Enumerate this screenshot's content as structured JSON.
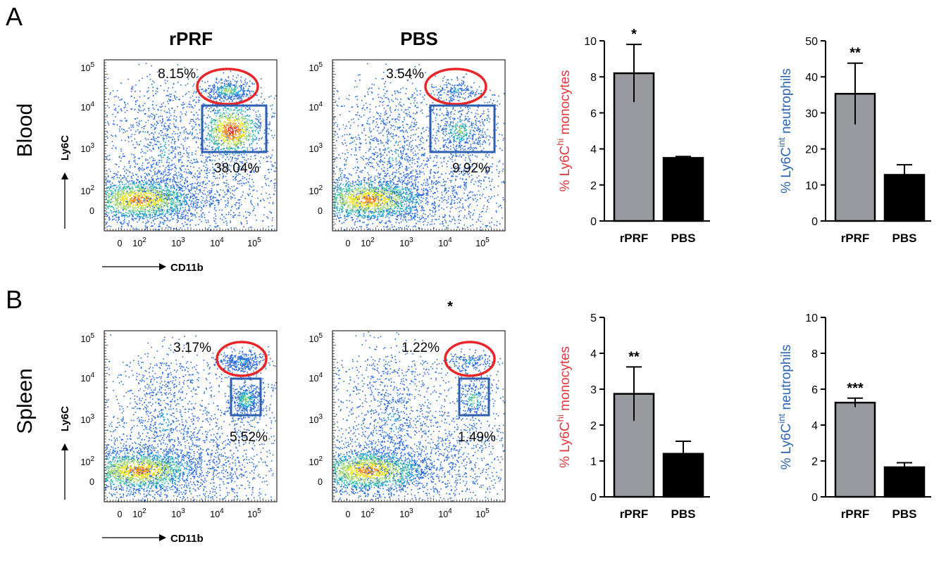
{
  "panels": [
    {
      "letter": "A",
      "tissue": "Blood",
      "flow": [
        {
          "title": "rPRF",
          "hi_pct": "8.15%",
          "int_pct": "38.04%"
        },
        {
          "title": "PBS",
          "hi_pct": "3.54%",
          "int_pct": "9.92%"
        }
      ]
    },
    {
      "letter": "B",
      "tissue": "Spleen",
      "flow": [
        {
          "title": "",
          "hi_pct": "3.17%",
          "int_pct": "5.52%"
        },
        {
          "title": "",
          "hi_pct": "1.22%",
          "int_pct": "1.49%"
        }
      ]
    }
  ],
  "flow_axes": {
    "x_label": "CD11b",
    "y_label": "Ly6C",
    "x_ticks": [
      "0",
      "10",
      "10",
      "10",
      "10"
    ],
    "y_ticks": [
      "10",
      "10",
      "10",
      "10",
      "0"
    ],
    "exponents": [
      "2",
      "3",
      "4",
      "5"
    ]
  },
  "stray_mark": "*",
  "chart_data": [
    {
      "type": "bar",
      "panel": "A",
      "title": "",
      "categories": [
        "rPRF",
        "PBS"
      ],
      "values": [
        8.2,
        3.5
      ],
      "errors": [
        1.6,
        0.08
      ],
      "ylim": [
        0,
        10
      ],
      "yticks": [
        "0",
        "2",
        "4",
        "6",
        "8",
        "10"
      ],
      "ylabel_prefix": "% Ly6C",
      "ylabel_sup": "hi",
      "ylabel_suffix": " monocytes",
      "ylabel_color": "#e0393e",
      "significance": "*",
      "bar_colors": [
        "#999aa0",
        "#000000"
      ]
    },
    {
      "type": "bar",
      "panel": "A",
      "title": "",
      "categories": [
        "rPRF",
        "PBS"
      ],
      "values": [
        35.3,
        12.8
      ],
      "errors": [
        8.5,
        2.8
      ],
      "ylim": [
        0,
        50
      ],
      "yticks": [
        "0",
        "10",
        "20",
        "30",
        "40",
        "50"
      ],
      "ylabel_prefix": "% Ly6C",
      "ylabel_sup": "int",
      "ylabel_suffix": " neutrophils",
      "ylabel_color": "#2f64b0",
      "significance": "**",
      "bar_colors": [
        "#999aa0",
        "#000000"
      ]
    },
    {
      "type": "bar",
      "panel": "B",
      "title": "",
      "categories": [
        "rPRF",
        "PBS"
      ],
      "values": [
        2.87,
        1.2
      ],
      "errors": [
        0.75,
        0.35
      ],
      "ylim": [
        0,
        5
      ],
      "yticks": [
        "0",
        "1",
        "2",
        "3",
        "4",
        "5"
      ],
      "ylabel_prefix": "% Ly6C",
      "ylabel_sup": "hi",
      "ylabel_suffix": " monocytes",
      "ylabel_color": "#e0393e",
      "significance": "**",
      "bar_colors": [
        "#999aa0",
        "#000000"
      ]
    },
    {
      "type": "bar",
      "panel": "B",
      "title": "",
      "categories": [
        "rPRF",
        "PBS"
      ],
      "values": [
        5.25,
        1.65
      ],
      "errors": [
        0.25,
        0.25
      ],
      "ylim": [
        0,
        10
      ],
      "yticks": [
        "0",
        "2",
        "4",
        "6",
        "8",
        "10"
      ],
      "ylabel_prefix": "% Ly6C",
      "ylabel_sup": "int",
      "ylabel_suffix": " neutrophils",
      "ylabel_color": "#2f64b0",
      "significance": "***",
      "bar_colors": [
        "#999aa0",
        "#000000"
      ]
    }
  ],
  "colors": {
    "gate_hi": "#e8262a",
    "gate_int": "#2d5fae"
  }
}
